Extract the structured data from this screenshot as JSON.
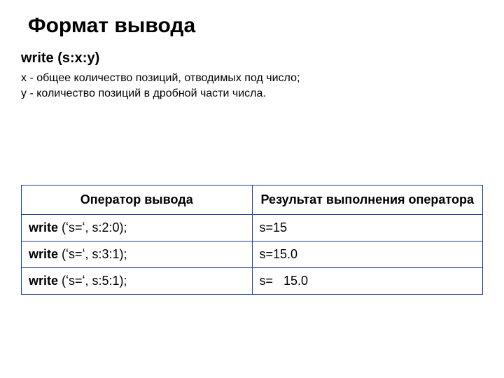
{
  "title": "Формат вывода",
  "syntax": "write (s:x:y)",
  "desc_line1": "x - общее количество позиций, отводимых под число;",
  "desc_line2": "y -  количество позиций в дробной части числа.",
  "table": {
    "border_color": "#1f3a93",
    "columns": [
      {
        "header": "Оператор вывода",
        "width_pct": 50
      },
      {
        "header": "Результат выполнения оператора",
        "width_pct": 50
      }
    ],
    "rows": [
      {
        "cmd_prefix": "write",
        "cmd_rest": " (ʻs=ʻ, s:2:0);",
        "result": "s=15"
      },
      {
        "cmd_prefix": "write",
        "cmd_rest": " (ʻs=ʻ, s:3:1);",
        "result": "s=15.0"
      },
      {
        "cmd_prefix": "write",
        "cmd_rest": " (ʻs=ʻ, s:5:1);",
        "result": "s=   15.0"
      }
    ]
  }
}
